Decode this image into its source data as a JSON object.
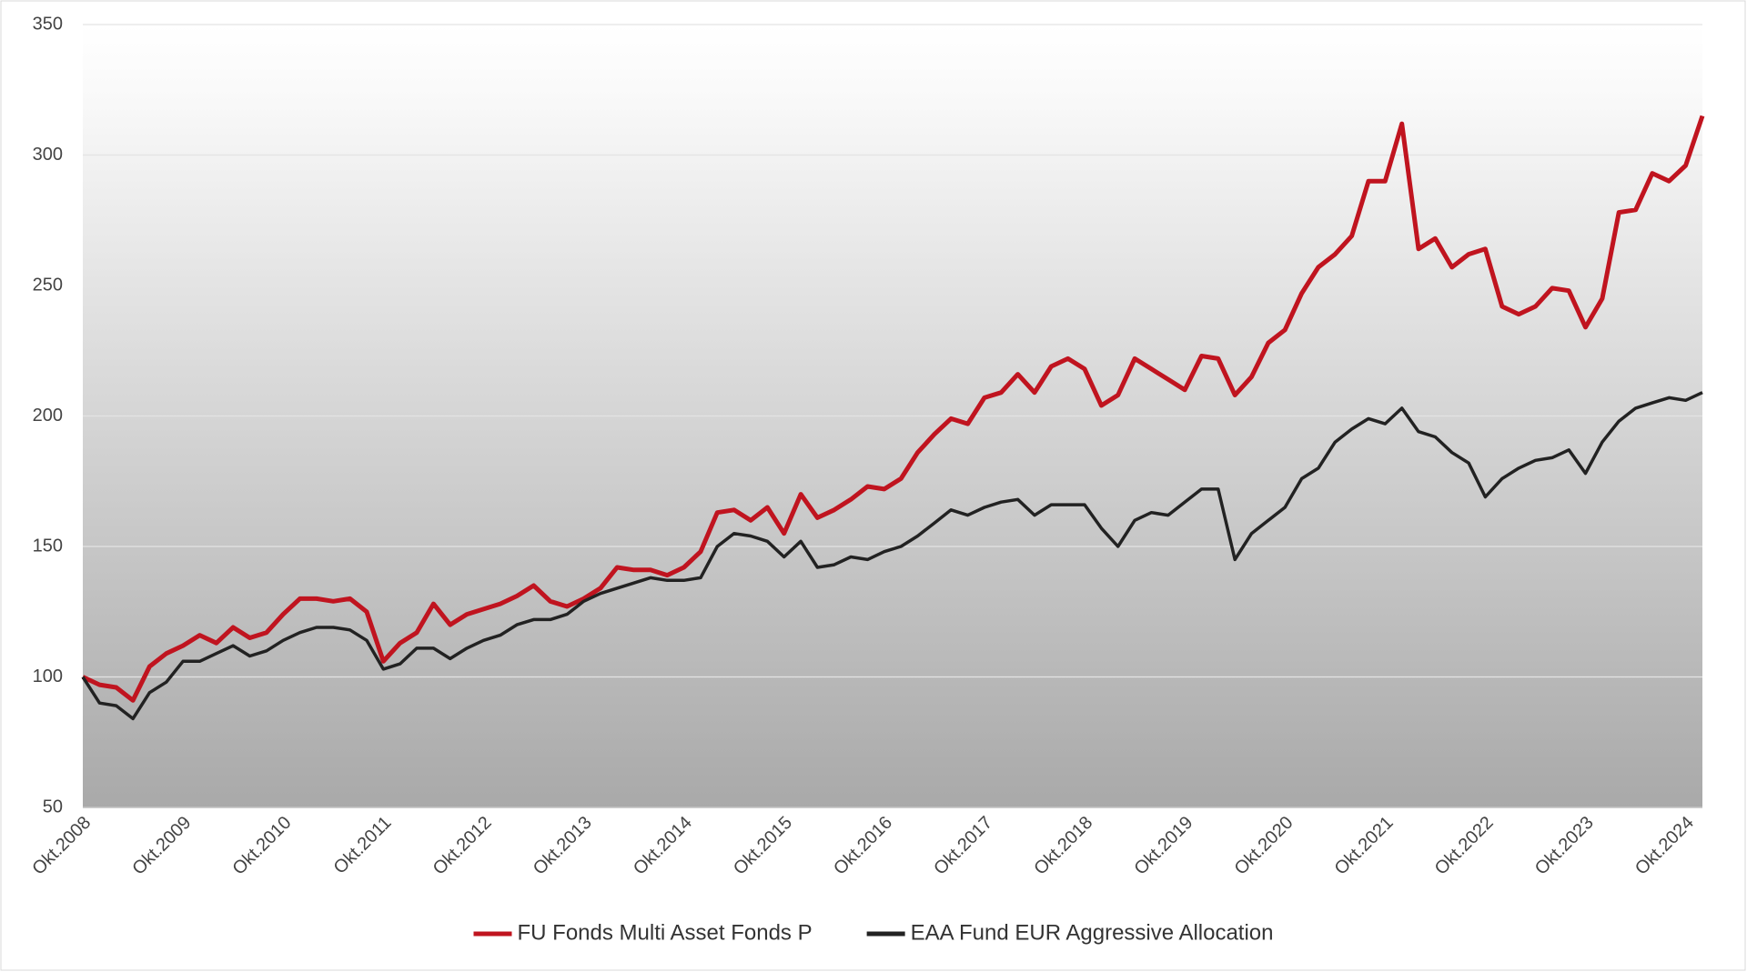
{
  "chart_data": {
    "type": "line",
    "categories": [
      "Okt.2008",
      null,
      null,
      null,
      null,
      null,
      "Okt.2009",
      null,
      null,
      null,
      null,
      null,
      "Okt.2010",
      null,
      null,
      null,
      null,
      null,
      "Okt.2011",
      null,
      null,
      null,
      null,
      null,
      "Okt.2012",
      null,
      null,
      null,
      null,
      null,
      "Okt.2013",
      null,
      null,
      null,
      null,
      null,
      "Okt.2014",
      null,
      null,
      null,
      null,
      null,
      "Okt.2015",
      null,
      null,
      null,
      null,
      null,
      "Okt.2016",
      null,
      null,
      null,
      null,
      null,
      "Okt.2017",
      null,
      null,
      null,
      null,
      null,
      "Okt.2018",
      null,
      null,
      null,
      null,
      null,
      "Okt.2019",
      null,
      null,
      null,
      null,
      null,
      "Okt.2020",
      null,
      null,
      null,
      null,
      null,
      "Okt.2021",
      null,
      null,
      null,
      null,
      null,
      "Okt.2022",
      null,
      null,
      null,
      null,
      null,
      "Okt.2023",
      null,
      null,
      null,
      null,
      null,
      "Okt.2024",
      null
    ],
    "series": [
      {
        "name": "FU Fonds Multi Asset Fonds P",
        "color": "#c0141f",
        "values": [
          100,
          97,
          96,
          91,
          104,
          109,
          112,
          116,
          113,
          119,
          115,
          117,
          124,
          130,
          130,
          129,
          130,
          125,
          106,
          113,
          117,
          128,
          120,
          124,
          126,
          128,
          131,
          135,
          129,
          127,
          130,
          134,
          142,
          141,
          141,
          139,
          142,
          148,
          163,
          164,
          160,
          165,
          155,
          170,
          161,
          164,
          168,
          173,
          172,
          176,
          186,
          193,
          199,
          197,
          207,
          209,
          216,
          209,
          219,
          222,
          218,
          204,
          208,
          222,
          218,
          214,
          210,
          223,
          222,
          208,
          215,
          228,
          233,
          247,
          257,
          262,
          269,
          290,
          290,
          312,
          264,
          268,
          257,
          262,
          264,
          242,
          239,
          242,
          249,
          248,
          234,
          245,
          278,
          279,
          293,
          290,
          296,
          315
        ]
      },
      {
        "name": "EAA Fund EUR Aggressive Allocation",
        "color": "#222222",
        "values": [
          100,
          90,
          89,
          84,
          94,
          98,
          106,
          106,
          109,
          112,
          108,
          110,
          114,
          117,
          119,
          119,
          118,
          114,
          103,
          105,
          111,
          111,
          107,
          111,
          114,
          116,
          120,
          122,
          122,
          124,
          129,
          132,
          134,
          136,
          138,
          137,
          137,
          138,
          150,
          155,
          154,
          152,
          146,
          152,
          142,
          143,
          146,
          145,
          148,
          150,
          154,
          159,
          164,
          162,
          165,
          167,
          168,
          162,
          166,
          166,
          166,
          157,
          150,
          160,
          163,
          162,
          167,
          172,
          172,
          145,
          155,
          160,
          165,
          176,
          180,
          190,
          195,
          199,
          197,
          203,
          194,
          192,
          186,
          182,
          169,
          176,
          180,
          183,
          184,
          187,
          178,
          190,
          198,
          203,
          205,
          207,
          206,
          209
        ]
      }
    ],
    "ylim": [
      50,
      350
    ],
    "yticks": [
      50,
      100,
      150,
      200,
      250,
      300,
      350
    ],
    "grid": true,
    "legend": "bottom"
  }
}
